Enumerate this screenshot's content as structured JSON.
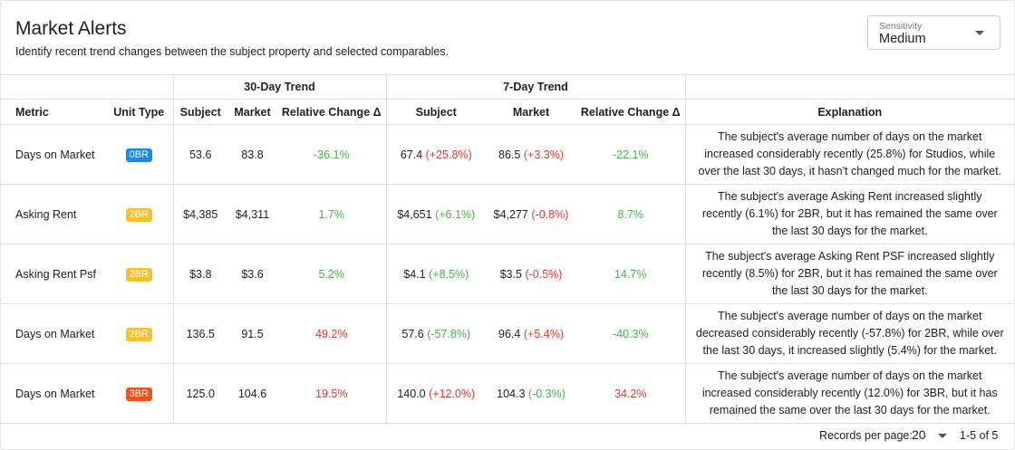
{
  "header": {
    "title": "Market Alerts",
    "subtitle": "Identify recent trend changes between the subject property and selected comparables."
  },
  "sensitivity": {
    "label": "Sensitivity",
    "value": "Medium"
  },
  "table": {
    "group_headers": {
      "thirty_day": "30-Day Trend",
      "seven_day": "7-Day Trend"
    },
    "columns": {
      "metric": "Metric",
      "unit_type": "Unit Type",
      "subject30": "Subject",
      "market30": "Market",
      "rel30": "Relative Change Δ",
      "subject7": "Subject",
      "market7": "Market",
      "rel7": "Relative Change Δ",
      "explanation": "Explanation"
    },
    "rows": [
      {
        "metric": "Days on Market",
        "unit": "0BR",
        "unit_color": "#1e88e5",
        "subject30": "53.6",
        "market30": "83.8",
        "rel30": "-36.1%",
        "rel30_tone": "pos",
        "subject7": "67.4",
        "subject7_change": "(+25.8%)",
        "subject7_tone": "neg",
        "market7": "86.5",
        "market7_change": "(+3.3%)",
        "market7_tone": "neg",
        "rel7": "-22.1%",
        "rel7_tone": "pos",
        "explanation": [
          "The subject's average number of days on the market",
          "increased considerably recently (25.8%) for Studios, while",
          "over the last 30 days, it hasn't changed much for the market."
        ]
      },
      {
        "metric": "Asking Rent",
        "unit": "2BR",
        "unit_color": "#fbc02d",
        "subject30": "$4,385",
        "market30": "$4,311",
        "rel30": "1.7%",
        "rel30_tone": "pos",
        "subject7": "$4,651",
        "subject7_change": "(+6.1%)",
        "subject7_tone": "pos",
        "market7": "$4,277",
        "market7_change": "(-0.8%)",
        "market7_tone": "neg",
        "rel7": "8.7%",
        "rel7_tone": "pos",
        "explanation": [
          "The subject's average Asking Rent increased slightly",
          "recently (6.1%) for 2BR, but it has remained the same over",
          "the last 30 days for the market."
        ]
      },
      {
        "metric": "Asking Rent Psf",
        "unit": "2BR",
        "unit_color": "#fbc02d",
        "subject30": "$3.8",
        "market30": "$3.6",
        "rel30": "5.2%",
        "rel30_tone": "pos",
        "subject7": "$4.1",
        "subject7_change": "(+8.5%)",
        "subject7_tone": "pos",
        "market7": "$3.5",
        "market7_change": "(-0.5%)",
        "market7_tone": "neg",
        "rel7": "14.7%",
        "rel7_tone": "pos",
        "explanation": [
          "The subject's average Asking Rent PSF increased slightly",
          "recently (8.5%) for 2BR, but it has remained the same over",
          "the last 30 days for the market."
        ]
      },
      {
        "metric": "Days on Market",
        "unit": "2BR",
        "unit_color": "#fbc02d",
        "subject30": "136.5",
        "market30": "91.5",
        "rel30": "49.2%",
        "rel30_tone": "neg",
        "subject7": "57.6",
        "subject7_change": "(-57.8%)",
        "subject7_tone": "pos",
        "market7": "96.4",
        "market7_change": "(+5.4%)",
        "market7_tone": "neg",
        "rel7": "-40.3%",
        "rel7_tone": "pos",
        "explanation": [
          "The subject's average number of days on the market",
          "decreased considerably recently (-57.8%) for 2BR, while over",
          "the last 30 days, it increased slightly (5.4%) for the market."
        ]
      },
      {
        "metric": "Days on Market",
        "unit": "3BR",
        "unit_color": "#f4511e",
        "subject30": "125.0",
        "market30": "104.6",
        "rel30": "19.5%",
        "rel30_tone": "neg",
        "subject7": "140.0",
        "subject7_change": "(+12.0%)",
        "subject7_tone": "neg",
        "market7": "104.3",
        "market7_change": "(-0.3%)",
        "market7_tone": "pos",
        "rel7": "34.2%",
        "rel7_tone": "neg",
        "explanation": [
          "The subject's average number of days on the market",
          "increased considerably recently (12.0%) for 3BR, but it has",
          "remained the same over the last 30 days for the market."
        ]
      }
    ]
  },
  "pagination": {
    "records_label": "Records per page:",
    "records_value": "20",
    "range": "1-5 of 5"
  }
}
